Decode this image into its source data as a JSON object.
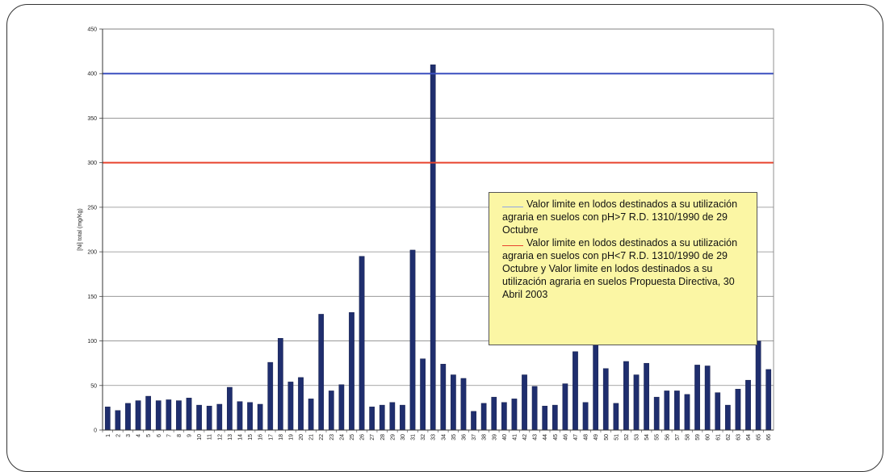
{
  "chart_data": {
    "type": "bar",
    "ylabel": "[Ni] total (mg/Kg)",
    "xlabel": "",
    "ylim": [
      0,
      450
    ],
    "yticks": [
      0,
      50,
      100,
      150,
      200,
      250,
      300,
      350,
      400,
      450
    ],
    "categories": [
      "1",
      "2",
      "3",
      "4",
      "5",
      "6",
      "7",
      "8",
      "9",
      "10",
      "11",
      "12",
      "13",
      "14",
      "15",
      "16",
      "17",
      "18",
      "19",
      "20",
      "21",
      "22",
      "23",
      "24",
      "25",
      "26",
      "27",
      "28",
      "29",
      "30",
      "31",
      "32",
      "33",
      "34",
      "35",
      "36",
      "37",
      "38",
      "39",
      "40",
      "41",
      "42",
      "43",
      "44",
      "45",
      "46",
      "47",
      "48",
      "49",
      "50",
      "51",
      "52",
      "53",
      "54",
      "55",
      "56",
      "57",
      "58",
      "59",
      "60",
      "61",
      "62",
      "63",
      "64",
      "65",
      "66"
    ],
    "values": [
      26,
      22,
      30,
      33,
      38,
      33,
      34,
      33,
      36,
      28,
      27,
      29,
      48,
      32,
      31,
      29,
      76,
      103,
      54,
      59,
      35,
      130,
      44,
      51,
      132,
      195,
      26,
      28,
      31,
      28,
      202,
      80,
      410,
      74,
      62,
      58,
      21,
      30,
      37,
      31,
      35,
      62,
      49,
      27,
      28,
      52,
      88,
      31,
      100,
      69,
      30,
      77,
      62,
      75,
      37,
      44,
      44,
      40,
      73,
      72,
      42,
      28,
      46,
      56,
      100,
      68
    ],
    "reference_lines": [
      {
        "value": 400,
        "color": "#3a4fbf"
      },
      {
        "value": 300,
        "color": "#e8432e"
      }
    ],
    "bar_color": "#1f2e6e",
    "grid": true,
    "legend": {
      "placement": "right-middle",
      "background": "#fbf6a4",
      "entries": [
        {
          "color": "#8fa3e6",
          "text": "Valor limite en lodos destinados a su utilización agraria en suelos con pH>7   R.D. 1310/1990 de 29 Octubre"
        },
        {
          "color": "#e8432e",
          "text": "Valor limite en lodos destinados a su utilización agraria en suelos con pH<7   R.D. 1310/1990 de 29 Octubre  y  Valor limite en lodos destinados a su utilización agraria en suelos Propuesta Directiva, 30 Abril 2003"
        }
      ]
    }
  }
}
